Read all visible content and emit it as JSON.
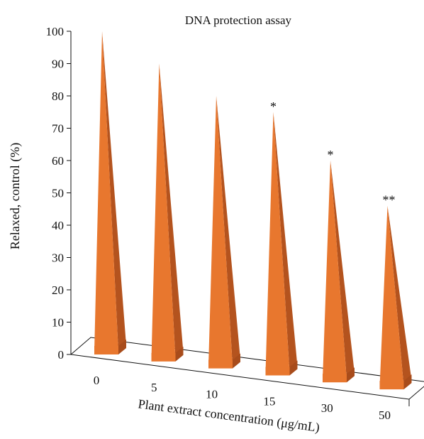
{
  "chart_data": {
    "type": "bar",
    "style": "3d-pyramid",
    "title": "DNA protection assay",
    "xlabel": "Plant extract concentration (μg/mL)",
    "ylabel": "Relaxed, control (%)",
    "ylim": [
      0,
      100
    ],
    "yticks": [
      0,
      10,
      20,
      30,
      40,
      50,
      60,
      70,
      80,
      90,
      100
    ],
    "categories": [
      "0",
      "5",
      "10",
      "15",
      "30",
      "50"
    ],
    "values": [
      100,
      90,
      80,
      75,
      60,
      46
    ],
    "annotations": [
      "",
      "",
      "",
      "*",
      "*",
      "**"
    ],
    "grid": false,
    "colors": {
      "bar_front": "#E8772E",
      "bar_side": "#B4531E",
      "base_front": "#E8772E",
      "base_side": "#A84C1B",
      "text": "#111111"
    }
  }
}
